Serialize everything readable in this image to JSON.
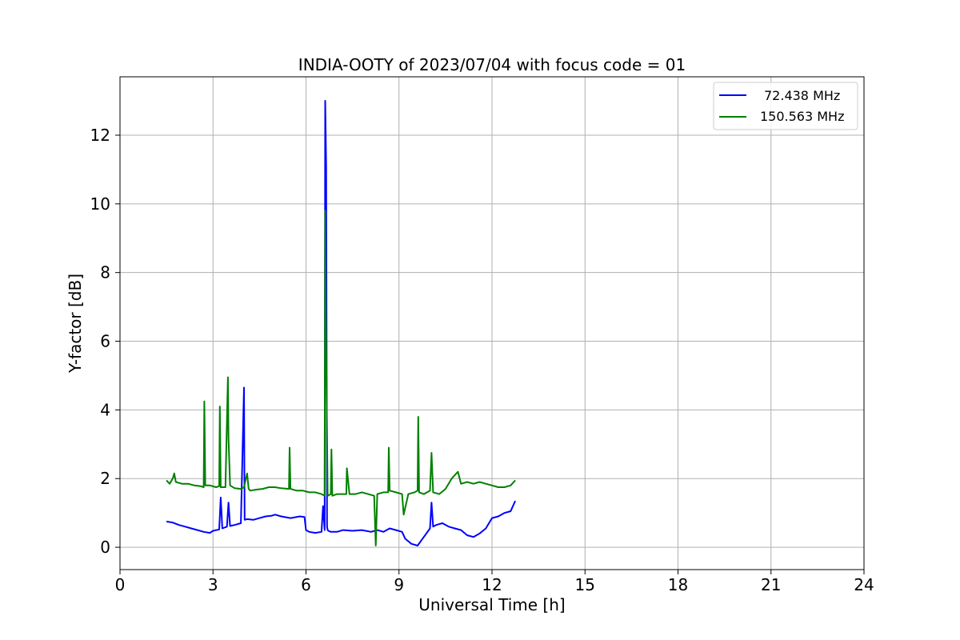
{
  "chart_data": {
    "type": "line",
    "title": "INDIA-OOTY of 2023/07/04 with focus code = 01",
    "xlabel": "Universal Time [h]",
    "ylabel": "Y-factor [dB]",
    "xlim": [
      0,
      24
    ],
    "ylim": [
      -0.65,
      13.7
    ],
    "xticks": [
      0,
      3,
      6,
      9,
      12,
      15,
      18,
      21,
      24
    ],
    "xtick_labels": [
      "0",
      "3",
      "6",
      "9",
      "12",
      "15",
      "18",
      "21",
      "24"
    ],
    "yticks": [
      0,
      2,
      4,
      6,
      8,
      10,
      12
    ],
    "ytick_labels": [
      "0",
      "2",
      "4",
      "6",
      "8",
      "10",
      "12"
    ],
    "grid": true,
    "legend_position": "top-right",
    "series": [
      {
        "name": "72.438 MHz",
        "color": "#0000ff",
        "x": [
          1.5,
          1.7,
          1.9,
          2.1,
          2.3,
          2.5,
          2.7,
          2.9,
          3.0,
          3.2,
          3.25,
          3.3,
          3.45,
          3.5,
          3.55,
          3.7,
          3.9,
          4.0,
          4.02,
          4.1,
          4.3,
          4.5,
          4.7,
          4.9,
          5.0,
          5.2,
          5.5,
          5.8,
          5.95,
          6.0,
          6.1,
          6.3,
          6.5,
          6.55,
          6.6,
          6.62,
          6.65,
          6.68,
          6.7,
          6.72,
          6.8,
          7.0,
          7.2,
          7.5,
          7.8,
          8.1,
          8.3,
          8.5,
          8.7,
          8.9,
          9.1,
          9.2,
          9.4,
          9.6,
          9.8,
          10.0,
          10.05,
          10.1,
          10.2,
          10.4,
          10.6,
          10.8,
          11.0,
          11.2,
          11.4,
          11.6,
          11.8,
          12.0,
          12.2,
          12.4,
          12.6,
          12.75
        ],
        "y": [
          0.75,
          0.72,
          0.65,
          0.6,
          0.55,
          0.5,
          0.45,
          0.42,
          0.48,
          0.52,
          1.45,
          0.55,
          0.6,
          1.3,
          0.62,
          0.65,
          0.7,
          4.65,
          0.8,
          0.82,
          0.8,
          0.85,
          0.9,
          0.92,
          0.95,
          0.9,
          0.85,
          0.9,
          0.88,
          0.5,
          0.45,
          0.42,
          0.45,
          1.2,
          0.5,
          13.0,
          11.1,
          0.6,
          0.5,
          0.48,
          0.45,
          0.45,
          0.5,
          0.48,
          0.5,
          0.45,
          0.5,
          0.45,
          0.55,
          0.5,
          0.45,
          0.25,
          0.1,
          0.05,
          0.3,
          0.55,
          1.3,
          0.6,
          0.65,
          0.7,
          0.6,
          0.55,
          0.5,
          0.35,
          0.3,
          0.4,
          0.55,
          0.85,
          0.9,
          1.0,
          1.05,
          1.35
        ]
      },
      {
        "name": "150.563 MHz",
        "color": "#008000",
        "x": [
          1.5,
          1.6,
          1.7,
          1.75,
          1.8,
          2.0,
          2.2,
          2.4,
          2.6,
          2.7,
          2.72,
          2.75,
          2.9,
          3.1,
          3.2,
          3.22,
          3.25,
          3.4,
          3.48,
          3.5,
          3.55,
          3.7,
          3.9,
          4.0,
          4.1,
          4.15,
          4.2,
          4.4,
          4.6,
          4.8,
          5.0,
          5.2,
          5.45,
          5.47,
          5.5,
          5.7,
          5.9,
          6.1,
          6.3,
          6.5,
          6.6,
          6.62,
          6.64,
          6.7,
          6.8,
          6.82,
          6.85,
          7.0,
          7.2,
          7.3,
          7.32,
          7.4,
          7.6,
          7.8,
          8.0,
          8.2,
          8.25,
          8.3,
          8.5,
          8.65,
          8.67,
          8.7,
          8.9,
          9.1,
          9.15,
          9.3,
          9.5,
          9.6,
          9.62,
          9.65,
          9.8,
          10.0,
          10.05,
          10.1,
          10.3,
          10.5,
          10.7,
          10.9,
          11.0,
          11.2,
          11.4,
          11.6,
          11.8,
          12.0,
          12.2,
          12.4,
          12.6,
          12.75
        ],
        "y": [
          1.95,
          1.85,
          2.0,
          2.15,
          1.9,
          1.85,
          1.85,
          1.8,
          1.78,
          1.75,
          4.25,
          1.8,
          1.8,
          1.75,
          1.78,
          4.1,
          1.75,
          1.75,
          4.95,
          3.2,
          1.8,
          1.72,
          1.7,
          1.75,
          2.15,
          1.7,
          1.65,
          1.68,
          1.7,
          1.75,
          1.75,
          1.72,
          1.7,
          2.9,
          1.7,
          1.65,
          1.65,
          1.6,
          1.6,
          1.55,
          1.5,
          9.8,
          6.7,
          1.5,
          1.55,
          2.85,
          1.5,
          1.55,
          1.55,
          1.55,
          2.3,
          1.55,
          1.55,
          1.6,
          1.55,
          1.5,
          0.05,
          1.55,
          1.6,
          1.6,
          2.9,
          1.65,
          1.6,
          1.55,
          0.95,
          1.55,
          1.6,
          1.65,
          3.8,
          1.6,
          1.55,
          1.65,
          2.75,
          1.6,
          1.55,
          1.7,
          2.0,
          2.2,
          1.85,
          1.9,
          1.85,
          1.9,
          1.85,
          1.8,
          1.75,
          1.75,
          1.8,
          1.95
        ]
      }
    ]
  }
}
